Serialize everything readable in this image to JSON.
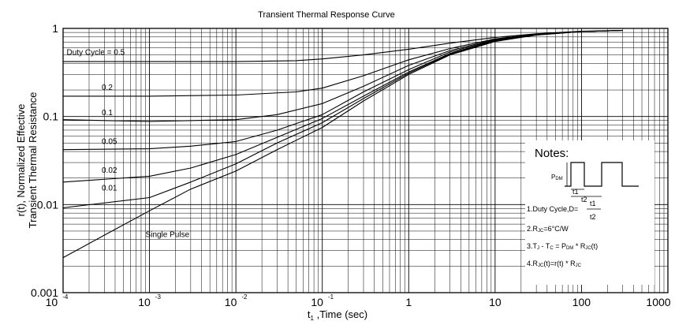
{
  "chart_data": {
    "type": "line",
    "title": "Transient Thermal Response Curve",
    "xlabel": {
      "base": "t",
      "sub": "1",
      "rest": " ,Time (sec)"
    },
    "ylabel": [
      "r(t), Normalized Effective",
      "Transient Thermal Resistance"
    ],
    "x_scale": "log",
    "y_scale": "log",
    "xlim": [
      0.0001,
      1000
    ],
    "ylim": [
      0.001,
      1
    ],
    "grid": true,
    "x_ticks": [
      {
        "value": 0.0001,
        "base": "10",
        "exp": "-4"
      },
      {
        "value": 0.001,
        "base": "10",
        "exp": "-3"
      },
      {
        "value": 0.01,
        "base": "10",
        "exp": "-2"
      },
      {
        "value": 0.1,
        "base": "10",
        "exp": "-1"
      },
      {
        "value": 1,
        "base": "1",
        "exp": ""
      },
      {
        "value": 10,
        "base": "10",
        "exp": ""
      },
      {
        "value": 100,
        "base": "100",
        "exp": ""
      },
      {
        "value": 1000,
        "base": "1000",
        "exp": ""
      }
    ],
    "y_ticks": [
      {
        "value": 0.001,
        "label": "0.001"
      },
      {
        "value": 0.01,
        "label": "0.01"
      },
      {
        "value": 0.1,
        "label": "0.1"
      },
      {
        "value": 1,
        "label": "1"
      }
    ],
    "series": [
      {
        "name": "Duty Cycle = 0.5",
        "label_at": [
          0.00011,
          0.5
        ],
        "x": [
          0.0001,
          0.001,
          0.01,
          0.05,
          0.1,
          0.3,
          1,
          3,
          10,
          30,
          100,
          300
        ],
        "y": [
          0.42,
          0.42,
          0.42,
          0.43,
          0.45,
          0.5,
          0.58,
          0.68,
          0.79,
          0.87,
          0.93,
          0.95
        ]
      },
      {
        "name": "0.2",
        "label_at": [
          0.00028,
          0.2
        ],
        "x": [
          0.0001,
          0.001,
          0.01,
          0.05,
          0.1,
          0.3,
          1,
          3,
          10,
          30,
          100,
          300
        ],
        "y": [
          0.17,
          0.17,
          0.175,
          0.19,
          0.21,
          0.29,
          0.44,
          0.59,
          0.76,
          0.86,
          0.92,
          0.95
        ]
      },
      {
        "name": "0.1",
        "label_at": [
          0.00028,
          0.104
        ],
        "x": [
          0.0001,
          0.001,
          0.01,
          0.03,
          0.1,
          0.3,
          1,
          3,
          10,
          30,
          100,
          300
        ],
        "y": [
          0.092,
          0.088,
          0.092,
          0.105,
          0.14,
          0.22,
          0.38,
          0.56,
          0.75,
          0.85,
          0.92,
          0.95
        ]
      },
      {
        "name": "0.05",
        "label_at": [
          0.00028,
          0.049
        ],
        "x": [
          0.0001,
          0.001,
          0.003,
          0.01,
          0.03,
          0.1,
          0.3,
          1,
          3,
          10,
          30,
          100,
          300
        ],
        "y": [
          0.042,
          0.043,
          0.046,
          0.052,
          0.07,
          0.105,
          0.19,
          0.34,
          0.54,
          0.74,
          0.85,
          0.92,
          0.95
        ]
      },
      {
        "name": "0.02",
        "label_at": [
          0.00028,
          0.023
        ],
        "x": [
          0.0001,
          0.001,
          0.003,
          0.01,
          0.03,
          0.1,
          0.3,
          1,
          3,
          10,
          30,
          100,
          300
        ],
        "y": [
          0.018,
          0.021,
          0.026,
          0.037,
          0.058,
          0.095,
          0.17,
          0.32,
          0.52,
          0.73,
          0.85,
          0.92,
          0.95
        ]
      },
      {
        "name": "0.01",
        "label_at": [
          0.00028,
          0.0145
        ],
        "x": [
          0.0001,
          0.001,
          0.003,
          0.01,
          0.03,
          0.1,
          0.3,
          1,
          3,
          10,
          30,
          100,
          300
        ],
        "y": [
          0.0092,
          0.012,
          0.018,
          0.029,
          0.05,
          0.085,
          0.16,
          0.31,
          0.51,
          0.72,
          0.84,
          0.92,
          0.95
        ]
      },
      {
        "name": "Single Pulse",
        "label_at": [
          0.0009,
          0.0043
        ],
        "x": [
          0.0001,
          0.0003,
          0.001,
          0.003,
          0.01,
          0.03,
          0.1,
          0.3,
          1,
          3,
          10,
          30,
          100,
          300
        ],
        "y": [
          0.0025,
          0.0045,
          0.0085,
          0.015,
          0.024,
          0.042,
          0.075,
          0.15,
          0.3,
          0.5,
          0.71,
          0.84,
          0.92,
          0.95
        ]
      }
    ],
    "notes": {
      "title": "Notes:",
      "pdm": {
        "base": "P",
        "sub": "DM"
      },
      "t1": "t1",
      "t2": "t2",
      "note1_prefix": "1.Duty Cycle,D=",
      "frac_num": "t1",
      "frac_den": "t2",
      "note2": {
        "a": "2.R",
        "sub": "JC",
        "b": "=6°C/W"
      },
      "note3": {
        "a": "3.T",
        "sub1": "J",
        "b": " - T",
        "sub2": "C",
        "c": " = P",
        "sub3": "DM",
        "d": " * R",
        "sub4": "JC",
        "e": "(t)"
      },
      "note4": {
        "a": "4.R",
        "sub1": "JC",
        "b": "(t)=r(t) * R",
        "sub2": "JC"
      }
    }
  }
}
